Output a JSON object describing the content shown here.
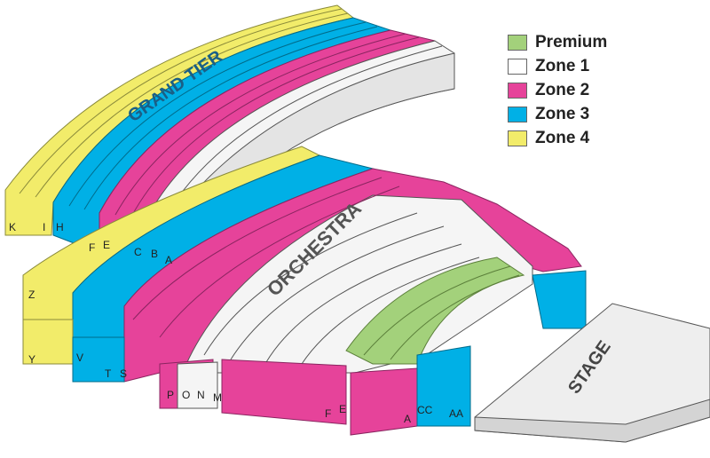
{
  "sections": {
    "grand_tier": "GRAND TIER",
    "orchestra": "ORCHESTRA",
    "stage": "STAGE"
  },
  "legend": [
    {
      "label": "Premium",
      "color": "#a3d17b"
    },
    {
      "label": "Zone 1",
      "color": "#ffffff"
    },
    {
      "label": "Zone 2",
      "color": "#e6439a"
    },
    {
      "label": "Zone 3",
      "color": "#00b0e6"
    },
    {
      "label": "Zone 4",
      "color": "#f2ec6a"
    }
  ],
  "grand_tier_row_labels": [
    "K",
    "I",
    "H",
    "F",
    "E",
    "C",
    "B",
    "A"
  ],
  "orchestra_row_labels": [
    "Z",
    "Y",
    "V",
    "T",
    "S",
    "P",
    "O",
    "N",
    "M",
    "F",
    "E",
    "A",
    "CC",
    "AA"
  ]
}
